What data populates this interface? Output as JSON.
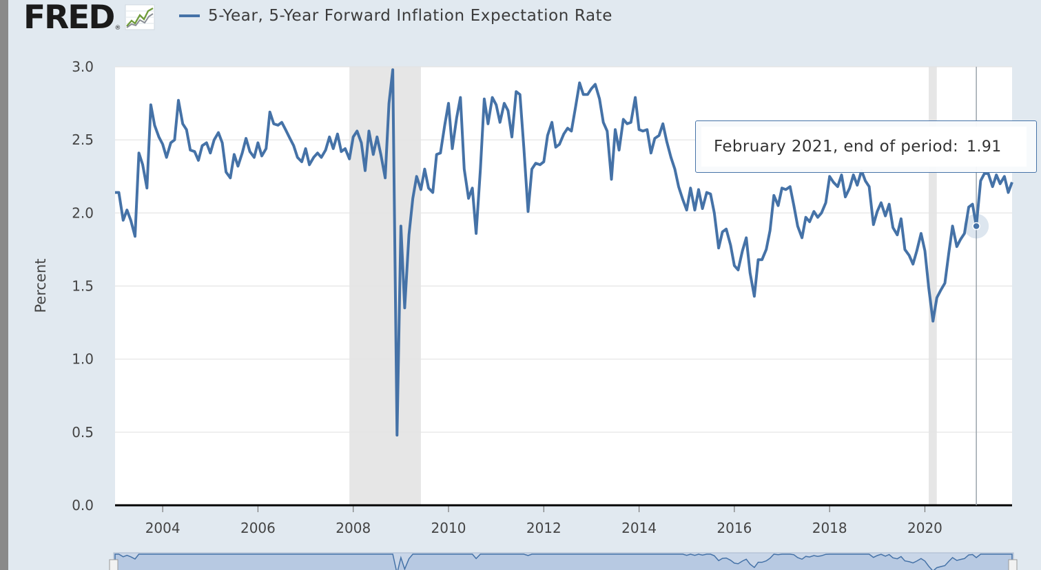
{
  "logo": {
    "text": "FRED",
    "reg": "®",
    "icon": "line-graph-icon"
  },
  "legend": {
    "label": "5-Year, 5-Year Forward Inflation Expectation Rate",
    "color": "#4572a7"
  },
  "tooltip": {
    "label": "February 2021, end of period:",
    "value": "1.91"
  },
  "chart_data": {
    "type": "line",
    "ylabel": "Percent",
    "ylim": [
      0,
      3.0
    ],
    "xlim": [
      2003.0,
      2021.83
    ],
    "yticks": [
      "0.0",
      "0.5",
      "1.0",
      "1.5",
      "2.0",
      "2.5",
      "3.0"
    ],
    "xticks": [
      "2004",
      "2006",
      "2008",
      "2010",
      "2012",
      "2014",
      "2016",
      "2018",
      "2020"
    ],
    "grid": true,
    "recessions": [
      [
        2007.92,
        2009.42
      ],
      [
        2020.08,
        2020.25
      ]
    ],
    "highlight": {
      "x": 2021.08,
      "y": 1.91
    },
    "series": [
      {
        "name": "5-Year, 5-Year Forward Inflation Expectation Rate",
        "color": "#4572a7",
        "points": [
          [
            2003.0,
            2.14
          ],
          [
            2003.08,
            2.14
          ],
          [
            2003.17,
            1.95
          ],
          [
            2003.25,
            2.02
          ],
          [
            2003.33,
            1.95
          ],
          [
            2003.42,
            1.84
          ],
          [
            2003.5,
            2.41
          ],
          [
            2003.58,
            2.33
          ],
          [
            2003.67,
            2.17
          ],
          [
            2003.75,
            2.74
          ],
          [
            2003.83,
            2.6
          ],
          [
            2003.92,
            2.52
          ],
          [
            2004.0,
            2.47
          ],
          [
            2004.08,
            2.38
          ],
          [
            2004.17,
            2.48
          ],
          [
            2004.25,
            2.5
          ],
          [
            2004.33,
            2.77
          ],
          [
            2004.42,
            2.61
          ],
          [
            2004.5,
            2.57
          ],
          [
            2004.58,
            2.43
          ],
          [
            2004.67,
            2.42
          ],
          [
            2004.75,
            2.36
          ],
          [
            2004.83,
            2.46
          ],
          [
            2004.92,
            2.48
          ],
          [
            2005.0,
            2.41
          ],
          [
            2005.08,
            2.5
          ],
          [
            2005.17,
            2.55
          ],
          [
            2005.25,
            2.48
          ],
          [
            2005.33,
            2.28
          ],
          [
            2005.42,
            2.24
          ],
          [
            2005.5,
            2.4
          ],
          [
            2005.58,
            2.32
          ],
          [
            2005.67,
            2.41
          ],
          [
            2005.75,
            2.51
          ],
          [
            2005.83,
            2.42
          ],
          [
            2005.92,
            2.38
          ],
          [
            2006.0,
            2.48
          ],
          [
            2006.08,
            2.39
          ],
          [
            2006.17,
            2.44
          ],
          [
            2006.25,
            2.69
          ],
          [
            2006.33,
            2.61
          ],
          [
            2006.42,
            2.6
          ],
          [
            2006.5,
            2.62
          ],
          [
            2006.58,
            2.57
          ],
          [
            2006.67,
            2.51
          ],
          [
            2006.75,
            2.46
          ],
          [
            2006.83,
            2.38
          ],
          [
            2006.92,
            2.35
          ],
          [
            2007.0,
            2.44
          ],
          [
            2007.08,
            2.33
          ],
          [
            2007.17,
            2.38
          ],
          [
            2007.25,
            2.41
          ],
          [
            2007.33,
            2.38
          ],
          [
            2007.42,
            2.43
          ],
          [
            2007.5,
            2.52
          ],
          [
            2007.58,
            2.44
          ],
          [
            2007.67,
            2.54
          ],
          [
            2007.75,
            2.42
          ],
          [
            2007.83,
            2.44
          ],
          [
            2007.92,
            2.37
          ],
          [
            2008.0,
            2.52
          ],
          [
            2008.08,
            2.56
          ],
          [
            2008.17,
            2.48
          ],
          [
            2008.25,
            2.29
          ],
          [
            2008.33,
            2.56
          ],
          [
            2008.42,
            2.4
          ],
          [
            2008.5,
            2.52
          ],
          [
            2008.58,
            2.4
          ],
          [
            2008.67,
            2.24
          ],
          [
            2008.75,
            2.75
          ],
          [
            2008.83,
            2.98
          ],
          [
            2008.92,
            0.48
          ],
          [
            2009.0,
            1.91
          ],
          [
            2009.08,
            1.35
          ],
          [
            2009.17,
            1.85
          ],
          [
            2009.25,
            2.1
          ],
          [
            2009.33,
            2.25
          ],
          [
            2009.42,
            2.16
          ],
          [
            2009.5,
            2.3
          ],
          [
            2009.58,
            2.17
          ],
          [
            2009.67,
            2.14
          ],
          [
            2009.75,
            2.4
          ],
          [
            2009.83,
            2.41
          ],
          [
            2009.92,
            2.6
          ],
          [
            2010.0,
            2.75
          ],
          [
            2010.08,
            2.44
          ],
          [
            2010.17,
            2.65
          ],
          [
            2010.25,
            2.79
          ],
          [
            2010.33,
            2.3
          ],
          [
            2010.42,
            2.1
          ],
          [
            2010.5,
            2.17
          ],
          [
            2010.58,
            1.86
          ],
          [
            2010.67,
            2.3
          ],
          [
            2010.75,
            2.78
          ],
          [
            2010.83,
            2.61
          ],
          [
            2010.92,
            2.79
          ],
          [
            2011.0,
            2.74
          ],
          [
            2011.08,
            2.62
          ],
          [
            2011.17,
            2.75
          ],
          [
            2011.25,
            2.7
          ],
          [
            2011.33,
            2.52
          ],
          [
            2011.42,
            2.83
          ],
          [
            2011.5,
            2.81
          ],
          [
            2011.58,
            2.45
          ],
          [
            2011.67,
            2.01
          ],
          [
            2011.75,
            2.3
          ],
          [
            2011.83,
            2.34
          ],
          [
            2011.92,
            2.33
          ],
          [
            2012.0,
            2.35
          ],
          [
            2012.08,
            2.53
          ],
          [
            2012.17,
            2.62
          ],
          [
            2012.25,
            2.45
          ],
          [
            2012.33,
            2.47
          ],
          [
            2012.42,
            2.54
          ],
          [
            2012.5,
            2.58
          ],
          [
            2012.58,
            2.56
          ],
          [
            2012.67,
            2.73
          ],
          [
            2012.75,
            2.89
          ],
          [
            2012.83,
            2.81
          ],
          [
            2012.92,
            2.81
          ],
          [
            2013.0,
            2.85
          ],
          [
            2013.08,
            2.88
          ],
          [
            2013.17,
            2.78
          ],
          [
            2013.25,
            2.62
          ],
          [
            2013.33,
            2.56
          ],
          [
            2013.42,
            2.23
          ],
          [
            2013.5,
            2.57
          ],
          [
            2013.58,
            2.43
          ],
          [
            2013.67,
            2.64
          ],
          [
            2013.75,
            2.61
          ],
          [
            2013.83,
            2.62
          ],
          [
            2013.92,
            2.79
          ],
          [
            2014.0,
            2.57
          ],
          [
            2014.08,
            2.56
          ],
          [
            2014.17,
            2.57
          ],
          [
            2014.25,
            2.41
          ],
          [
            2014.33,
            2.51
          ],
          [
            2014.42,
            2.53
          ],
          [
            2014.5,
            2.61
          ],
          [
            2014.58,
            2.49
          ],
          [
            2014.67,
            2.38
          ],
          [
            2014.75,
            2.3
          ],
          [
            2014.83,
            2.18
          ],
          [
            2014.92,
            2.09
          ],
          [
            2015.0,
            2.02
          ],
          [
            2015.08,
            2.17
          ],
          [
            2015.17,
            2.02
          ],
          [
            2015.25,
            2.16
          ],
          [
            2015.33,
            2.03
          ],
          [
            2015.42,
            2.14
          ],
          [
            2015.5,
            2.13
          ],
          [
            2015.58,
            2.0
          ],
          [
            2015.67,
            1.76
          ],
          [
            2015.75,
            1.87
          ],
          [
            2015.83,
            1.89
          ],
          [
            2015.92,
            1.78
          ],
          [
            2016.0,
            1.64
          ],
          [
            2016.08,
            1.61
          ],
          [
            2016.17,
            1.74
          ],
          [
            2016.25,
            1.83
          ],
          [
            2016.33,
            1.59
          ],
          [
            2016.42,
            1.43
          ],
          [
            2016.5,
            1.68
          ],
          [
            2016.58,
            1.68
          ],
          [
            2016.67,
            1.75
          ],
          [
            2016.75,
            1.88
          ],
          [
            2016.83,
            2.12
          ],
          [
            2016.92,
            2.05
          ],
          [
            2017.0,
            2.17
          ],
          [
            2017.08,
            2.16
          ],
          [
            2017.17,
            2.18
          ],
          [
            2017.25,
            2.05
          ],
          [
            2017.33,
            1.91
          ],
          [
            2017.42,
            1.83
          ],
          [
            2017.5,
            1.97
          ],
          [
            2017.58,
            1.94
          ],
          [
            2017.67,
            2.01
          ],
          [
            2017.75,
            1.97
          ],
          [
            2017.83,
            2.0
          ],
          [
            2017.92,
            2.07
          ],
          [
            2018.0,
            2.25
          ],
          [
            2018.08,
            2.21
          ],
          [
            2018.17,
            2.18
          ],
          [
            2018.25,
            2.26
          ],
          [
            2018.33,
            2.11
          ],
          [
            2018.42,
            2.17
          ],
          [
            2018.5,
            2.26
          ],
          [
            2018.58,
            2.19
          ],
          [
            2018.67,
            2.29
          ],
          [
            2018.75,
            2.22
          ],
          [
            2018.83,
            2.18
          ],
          [
            2018.92,
            1.92
          ],
          [
            2019.0,
            2.01
          ],
          [
            2019.08,
            2.07
          ],
          [
            2019.17,
            1.98
          ],
          [
            2019.25,
            2.06
          ],
          [
            2019.33,
            1.9
          ],
          [
            2019.42,
            1.85
          ],
          [
            2019.5,
            1.96
          ],
          [
            2019.58,
            1.75
          ],
          [
            2019.67,
            1.71
          ],
          [
            2019.75,
            1.65
          ],
          [
            2019.83,
            1.74
          ],
          [
            2019.92,
            1.86
          ],
          [
            2020.0,
            1.74
          ],
          [
            2020.08,
            1.49
          ],
          [
            2020.17,
            1.26
          ],
          [
            2020.25,
            1.42
          ],
          [
            2020.33,
            1.47
          ],
          [
            2020.42,
            1.52
          ],
          [
            2020.5,
            1.72
          ],
          [
            2020.58,
            1.91
          ],
          [
            2020.67,
            1.77
          ],
          [
            2020.75,
            1.82
          ],
          [
            2020.83,
            1.86
          ],
          [
            2020.92,
            2.04
          ],
          [
            2021.0,
            2.06
          ],
          [
            2021.08,
            1.91
          ],
          [
            2021.17,
            2.22
          ],
          [
            2021.25,
            2.27
          ],
          [
            2021.33,
            2.27
          ],
          [
            2021.42,
            2.18
          ],
          [
            2021.5,
            2.26
          ],
          [
            2021.58,
            2.2
          ],
          [
            2021.67,
            2.25
          ],
          [
            2021.75,
            2.14
          ],
          [
            2021.83,
            2.21
          ]
        ]
      }
    ]
  }
}
